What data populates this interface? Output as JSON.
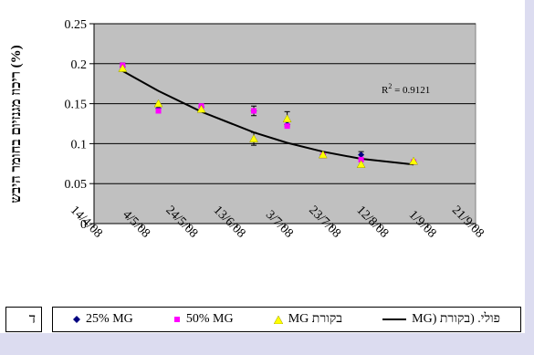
{
  "chart_data": {
    "type": "scatter",
    "ylabel": "ריכוז מגנזיום בחומר היבש (%)",
    "xlabel": "",
    "ylim": [
      0,
      0.25
    ],
    "yticks": [
      "0",
      "0.05",
      "0.1",
      "0.15",
      "0.2",
      "0.25"
    ],
    "xticks": [
      "14/4/08",
      "4/5/08",
      "24/5/08",
      "13/6/08",
      "3/7/08",
      "23/7/08",
      "12/8/08",
      "1/9/08",
      "21/9/08"
    ],
    "xlim": [
      "2008-04-14",
      "2008-09-21"
    ],
    "annotation": "R² = 0.9121",
    "series": [
      {
        "name": "25% MG",
        "color": "#000080",
        "marker": "diamond",
        "points": [
          {
            "x": "2008-04-26",
            "y": 0.196
          },
          {
            "x": "2008-05-11",
            "y": 0.144
          },
          {
            "x": "2008-05-29",
            "y": 0.146
          },
          {
            "x": "2008-06-20",
            "y": 0.141
          },
          {
            "x": "2008-07-04",
            "y": 0.124
          },
          {
            "x": "2008-07-19",
            "y": 0.086
          },
          {
            "x": "2008-08-04",
            "y": 0.086
          },
          {
            "x": "2008-08-26",
            "y": 0.077
          }
        ]
      },
      {
        "name": "50% MG",
        "color": "#ff00ff",
        "marker": "square",
        "points": [
          {
            "x": "2008-04-26",
            "y": 0.198
          },
          {
            "x": "2008-05-11",
            "y": 0.141
          },
          {
            "x": "2008-05-29",
            "y": 0.147
          },
          {
            "x": "2008-06-20",
            "y": 0.141
          },
          {
            "x": "2008-07-04",
            "y": 0.122
          },
          {
            "x": "2008-07-19",
            "y": 0.085
          },
          {
            "x": "2008-08-04",
            "y": 0.08
          },
          {
            "x": "2008-08-26",
            "y": 0.077
          }
        ]
      },
      {
        "name": "בקורת MG",
        "color": "#ffff00",
        "marker": "triangle",
        "points": [
          {
            "x": "2008-04-26",
            "y": 0.194
          },
          {
            "x": "2008-05-11",
            "y": 0.15
          },
          {
            "x": "2008-05-29",
            "y": 0.143
          },
          {
            "x": "2008-06-20",
            "y": 0.106
          },
          {
            "x": "2008-07-04",
            "y": 0.131
          },
          {
            "x": "2008-07-19",
            "y": 0.086
          },
          {
            "x": "2008-08-04",
            "y": 0.074
          },
          {
            "x": "2008-08-26",
            "y": 0.078
          }
        ]
      }
    ],
    "errors": [
      {
        "x": "2008-04-26",
        "y": 0.196,
        "err": 0.005
      },
      {
        "x": "2008-06-20",
        "y": 0.141,
        "err": 0.006
      },
      {
        "x": "2008-06-20",
        "y": 0.106,
        "err": 0.008
      },
      {
        "x": "2008-07-04",
        "y": 0.131,
        "err": 0.009
      },
      {
        "x": "2008-08-04",
        "y": 0.086,
        "err": 0.004
      }
    ],
    "trendline": {
      "name": "פולי. (בקורת (MG",
      "points": [
        {
          "x": "2008-04-26",
          "y": 0.191
        },
        {
          "x": "2008-05-11",
          "y": 0.166
        },
        {
          "x": "2008-05-29",
          "y": 0.14
        },
        {
          "x": "2008-06-20",
          "y": 0.114
        },
        {
          "x": "2008-07-04",
          "y": 0.101
        },
        {
          "x": "2008-07-19",
          "y": 0.09
        },
        {
          "x": "2008-08-04",
          "y": 0.081
        },
        {
          "x": "2008-08-26",
          "y": 0.074
        }
      ]
    },
    "grid": true,
    "legend_position": "bottom"
  },
  "legend": {
    "items": [
      "25% MG",
      "50% MG",
      "MG בקורת",
      "פולי. (בקורת (MG"
    ]
  },
  "panel_letter": "ד"
}
